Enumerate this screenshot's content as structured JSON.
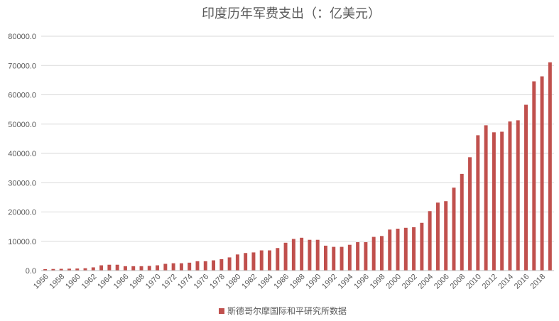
{
  "chart_data": {
    "type": "bar",
    "title": "印度历年军费支出（：亿美元）",
    "xlabel": "",
    "ylabel": "",
    "ylim": [
      0,
      80000
    ],
    "yticks": [
      "0.0",
      "10000.0",
      "20000.0",
      "30000.0",
      "40000.0",
      "50000.0",
      "60000.0",
      "70000.0",
      "80000.0"
    ],
    "grid": true,
    "legend_position": "bottom",
    "bar_color": "#c0504d",
    "categories": [
      1956,
      1957,
      1958,
      1959,
      1960,
      1961,
      1962,
      1963,
      1964,
      1965,
      1966,
      1967,
      1968,
      1969,
      1970,
      1971,
      1972,
      1973,
      1974,
      1975,
      1976,
      1977,
      1978,
      1979,
      1980,
      1981,
      1982,
      1983,
      1984,
      1985,
      1986,
      1987,
      1988,
      1989,
      1990,
      1991,
      1992,
      1993,
      1994,
      1995,
      1996,
      1997,
      1998,
      1999,
      2000,
      2001,
      2002,
      2003,
      2004,
      2005,
      2006,
      2007,
      2008,
      2009,
      2010,
      2011,
      2012,
      2013,
      2014,
      2015,
      2016,
      2017,
      2018,
      2019
    ],
    "xtick_labels": [
      "1956",
      "1958",
      "1960",
      "1962",
      "1964",
      "1966",
      "1968",
      "1970",
      "1972",
      "1974",
      "1976",
      "1978",
      "1980",
      "1982",
      "1984",
      "1986",
      "1988",
      "1990",
      "1992",
      "1994",
      "1996",
      "1998",
      "2000",
      "2002",
      "2004",
      "2006",
      "2008",
      "2010",
      "2012",
      "2014",
      "2016",
      "2018"
    ],
    "series": [
      {
        "name": "斯德哥尔摩国际和平研究所数据",
        "values": [
          500,
          550,
          600,
          650,
          700,
          800,
          1100,
          1800,
          2000,
          2000,
          1500,
          1500,
          1500,
          1600,
          1800,
          2300,
          2500,
          2500,
          2700,
          3200,
          3200,
          3500,
          3900,
          4500,
          5500,
          6000,
          6200,
          6900,
          6900,
          7700,
          9500,
          10800,
          11200,
          10500,
          10500,
          8500,
          8100,
          8100,
          8800,
          9700,
          9700,
          11500,
          11800,
          14000,
          14300,
          14600,
          14800,
          16300,
          20300,
          23200,
          23700,
          28300,
          33000,
          38700,
          46200,
          49600,
          47200,
          47400,
          50900,
          51300,
          56600,
          64600,
          66300,
          71100
        ]
      }
    ]
  }
}
